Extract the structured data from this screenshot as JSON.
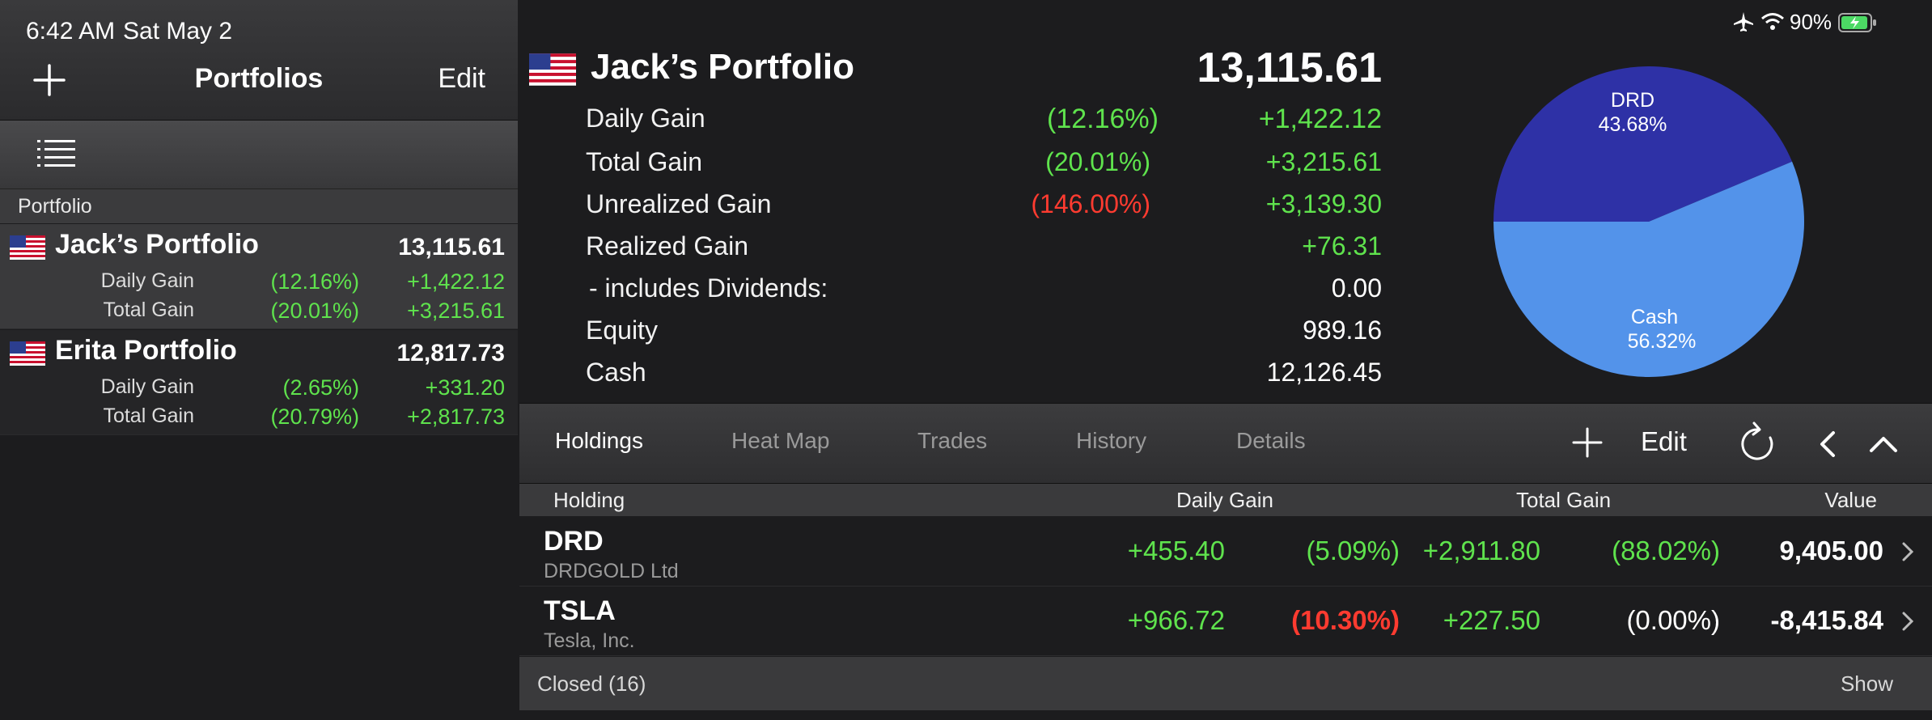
{
  "status_bar": {
    "time": "6:42 AM",
    "date": "Sat May 2",
    "battery": "90%"
  },
  "left": {
    "title": "Portfolios",
    "edit_label": "Edit",
    "section_header": "Portfolio",
    "portfolios": [
      {
        "name": "Jack’s Portfolio",
        "value": "13,115.61",
        "daily_label": "Daily Gain",
        "daily_pct": "(12.16%)",
        "daily_amt": "+1,422.12",
        "total_label": "Total Gain",
        "total_pct": "(20.01%)",
        "total_amt": "+3,215.61"
      },
      {
        "name": "Erita Portfolio",
        "value": "12,817.73",
        "daily_label": "Daily Gain",
        "daily_pct": "(2.65%)",
        "daily_amt": "+331.20",
        "total_label": "Total Gain",
        "total_pct": "(20.79%)",
        "total_amt": "+2,817.73"
      }
    ]
  },
  "summary": {
    "name": "Jack’s Portfolio",
    "value": "13,115.61",
    "rows": [
      {
        "label": "Daily Gain",
        "pct": "(12.16%)",
        "amt": "+1,422.12"
      },
      {
        "label": "Total Gain",
        "pct": "(20.01%)",
        "amt": "+3,215.61"
      },
      {
        "label": "Unrealized Gain",
        "pct": "(146.00%)",
        "amt": "+3,139.30"
      },
      {
        "label": "Realized Gain",
        "pct": "",
        "amt": "+76.31"
      },
      {
        "label": " - includes Dividends:",
        "pct": "",
        "amt": "0.00"
      },
      {
        "label": "Equity",
        "pct": "",
        "amt": "989.16"
      },
      {
        "label": "Cash",
        "pct": "",
        "amt": "12,126.45"
      }
    ]
  },
  "pie": {
    "slices": [
      {
        "label": "DRD",
        "pct_label": "43.68%",
        "value": 43.68,
        "color": "#2e31a6"
      },
      {
        "label": "Cash",
        "pct_label": "56.32%",
        "value": 56.32,
        "color": "#5393ea"
      }
    ]
  },
  "tabs": {
    "items": [
      "Holdings",
      "Heat Map",
      "Trades",
      "History",
      "Details"
    ],
    "active": "Holdings",
    "edit_label": "Edit"
  },
  "holdings": {
    "headers": {
      "holding": "Holding",
      "daily": "Daily Gain",
      "total": "Total Gain",
      "value": "Value"
    },
    "rows": [
      {
        "symbol": "DRD",
        "name": "DRDGOLD Ltd",
        "daily_amt": "+455.40",
        "daily_pct": "(5.09%)",
        "total_amt": "+2,911.80",
        "total_pct": "(88.02%)",
        "value": "9,405.00"
      },
      {
        "symbol": "TSLA",
        "name": "Tesla, Inc.",
        "daily_amt": "+966.72",
        "daily_pct": "(10.30%)",
        "total_amt": "+227.50",
        "total_pct": "(0.00%)",
        "value": "-8,415.84"
      }
    ],
    "closed_label": "Closed (16)",
    "show_label": "Show"
  },
  "colors": {
    "gain_green": "#5fe34d",
    "loss_red": "#ff3b30",
    "background": "#1c1c1e"
  }
}
